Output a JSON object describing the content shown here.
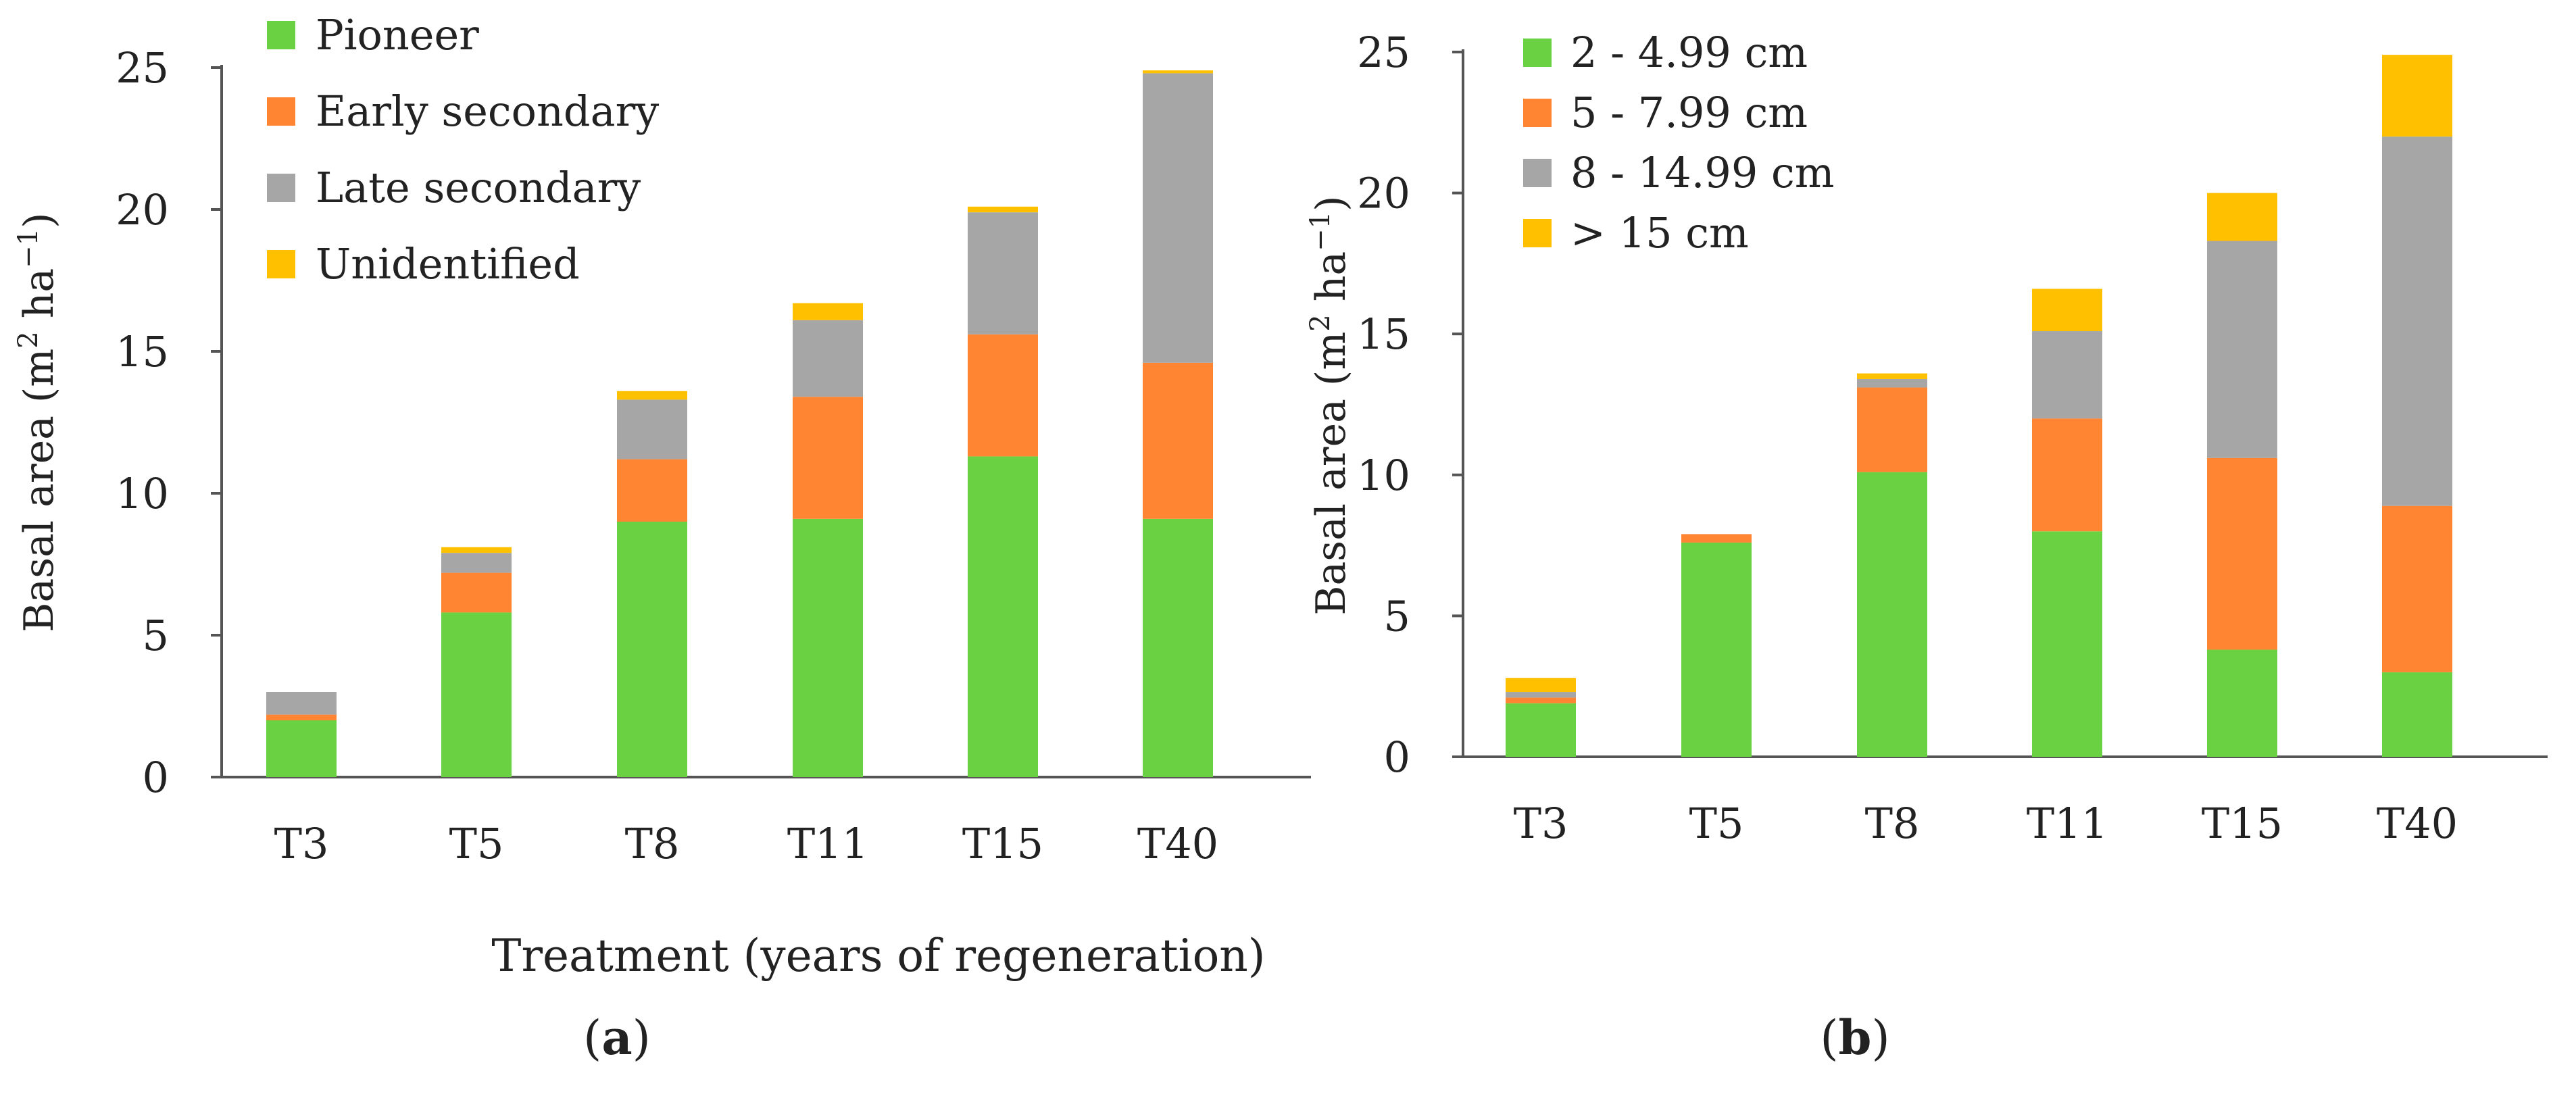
{
  "figure": {
    "x_title": "Treatment (years of regeneration)",
    "colors": {
      "s0": "#6ad142",
      "s1": "#ff8533",
      "s2": "#a6a6a6",
      "s3": "#ffc000"
    }
  },
  "chart_data": [
    {
      "type": "bar",
      "stacked": true,
      "panel_label": {
        "open": "(",
        "letter": "a",
        "close": ")"
      },
      "ylabel": {
        "main": "Basal area (m",
        "sup1": "2",
        "mid": " ha",
        "sup2": "−1",
        "end": ")"
      },
      "categories": [
        "T3",
        "T5",
        "T8",
        "T11",
        "T15",
        "T40"
      ],
      "ylim": [
        0,
        25
      ],
      "yticks": [
        0,
        5,
        10,
        15,
        20,
        25
      ],
      "ytick_labels": [
        "0",
        "5",
        "10",
        "15",
        "20",
        "25"
      ],
      "grid": false,
      "legend_position": "top-left",
      "series": [
        {
          "name": "Pioneer",
          "color": "#6ad142",
          "values": [
            2.0,
            5.8,
            9.0,
            9.1,
            11.3,
            9.1
          ]
        },
        {
          "name": "Early secondary",
          "color": "#ff8533",
          "values": [
            0.2,
            1.4,
            2.2,
            4.3,
            4.3,
            5.5
          ]
        },
        {
          "name": "Late secondary",
          "color": "#a6a6a6",
          "values": [
            0.8,
            0.7,
            2.1,
            2.7,
            4.3,
            10.2
          ]
        },
        {
          "name": "Unidentified",
          "color": "#ffc000",
          "values": [
            0.0,
            0.2,
            0.3,
            0.6,
            0.2,
            0.1
          ]
        }
      ]
    },
    {
      "type": "bar",
      "stacked": true,
      "panel_label": {
        "open": "(",
        "letter": "b",
        "close": ")"
      },
      "ylabel": {
        "main": "Basal area (m",
        "sup1": "2",
        "mid": " ha",
        "sup2": "−1",
        "end": ")"
      },
      "categories": [
        "T3",
        "T5",
        "T8",
        "T11",
        "T15",
        "T40"
      ],
      "ylim": [
        0,
        25
      ],
      "yticks": [
        0,
        5,
        10,
        15,
        20,
        25
      ],
      "ytick_labels": [
        "0",
        "5",
        "10",
        "15",
        "20",
        "25"
      ],
      "grid": false,
      "legend_position": "top-left",
      "series": [
        {
          "name": "2 - 4.99 cm",
          "color": "#6ad142",
          "values": [
            1.9,
            7.6,
            10.1,
            8.0,
            3.8,
            3.0
          ]
        },
        {
          "name": "5 - 7.99 cm",
          "color": "#ff8533",
          "values": [
            0.2,
            0.3,
            3.0,
            4.0,
            6.8,
            5.9
          ]
        },
        {
          "name": "8 - 14.99 cm",
          "color": "#a6a6a6",
          "values": [
            0.2,
            0.0,
            0.3,
            3.1,
            7.7,
            13.1
          ]
        },
        {
          "name": "> 15 cm",
          "color": "#ffc000",
          "values": [
            0.5,
            0.0,
            0.2,
            1.5,
            1.7,
            2.9
          ]
        }
      ]
    }
  ]
}
